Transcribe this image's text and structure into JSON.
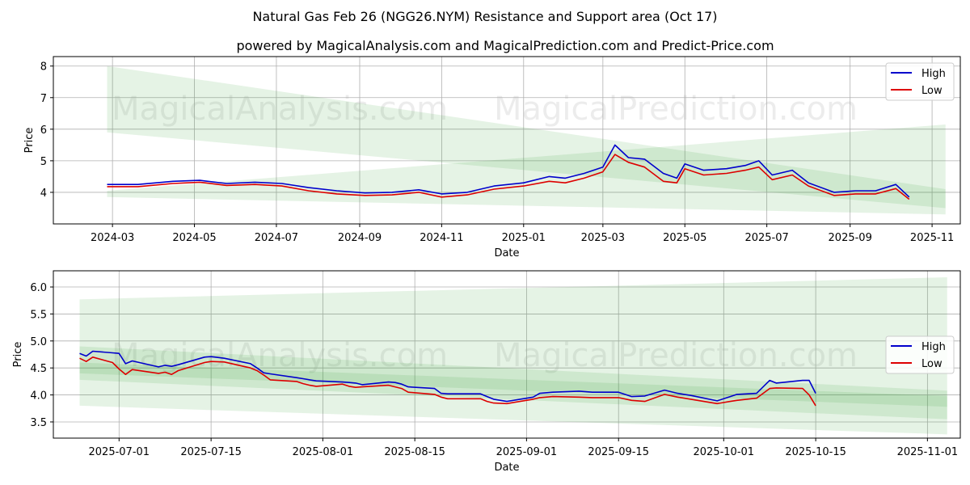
{
  "title": "Natural Gas Feb 26 (NGG26.NYM) Resistance and Support area (Oct 17)",
  "subtitle": "powered by MagicalAnalysis.com and MagicalPrediction.com and Predict-Price.com",
  "watermarks": [
    "MagicalAnalysis.com",
    "MagicalPrediction.com"
  ],
  "colors": {
    "high": "#0000cc",
    "low": "#dd0000",
    "band": "#2ca02c",
    "grid": "#b0b0b0"
  },
  "chart_data": [
    {
      "type": "line",
      "xlabel": "Date",
      "ylabel": "Price",
      "xlim": [
        "2024-01-17",
        "2025-11-22"
      ],
      "ylim": [
        3.0,
        8.3
      ],
      "xticks": [
        "2024-03",
        "2024-05",
        "2024-07",
        "2024-09",
        "2024-11",
        "2025-01",
        "2025-03",
        "2025-05",
        "2025-07",
        "2025-09",
        "2025-11"
      ],
      "yticks": [
        4,
        5,
        6,
        7,
        8
      ],
      "legend": [
        "High",
        "Low"
      ],
      "legend_position": "top-right",
      "bands": [
        {
          "x": [
            "2024-02-26",
            "2025-11-11"
          ],
          "upper": [
            8.0,
            4.1
          ],
          "lower": [
            5.9,
            3.5
          ]
        },
        {
          "x": [
            "2024-02-26",
            "2025-11-11"
          ],
          "upper": [
            4.05,
            6.15
          ],
          "lower": [
            3.85,
            3.3
          ]
        }
      ],
      "series": [
        {
          "name": "High",
          "x": [
            "2024-02-26",
            "2024-03-20",
            "2024-04-15",
            "2024-05-05",
            "2024-05-25",
            "2024-06-15",
            "2024-07-05",
            "2024-07-25",
            "2024-08-15",
            "2024-09-05",
            "2024-09-25",
            "2024-10-15",
            "2024-11-01",
            "2024-11-20",
            "2024-12-10",
            "2025-01-01",
            "2025-01-20",
            "2025-02-01",
            "2025-02-15",
            "2025-03-01",
            "2025-03-10",
            "2025-03-20",
            "2025-04-01",
            "2025-04-15",
            "2025-04-25",
            "2025-05-01",
            "2025-05-15",
            "2025-06-01",
            "2025-06-15",
            "2025-06-25",
            "2025-07-05",
            "2025-07-20",
            "2025-08-01",
            "2025-08-20",
            "2025-09-05",
            "2025-09-20",
            "2025-10-05",
            "2025-10-15"
          ],
          "values": [
            4.25,
            4.25,
            4.35,
            4.38,
            4.28,
            4.32,
            4.28,
            4.15,
            4.05,
            3.98,
            4.0,
            4.08,
            3.95,
            4.0,
            4.2,
            4.3,
            4.5,
            4.45,
            4.6,
            4.8,
            5.5,
            5.1,
            5.05,
            4.6,
            4.45,
            4.9,
            4.7,
            4.75,
            4.85,
            5.0,
            4.55,
            4.7,
            4.3,
            4.0,
            4.05,
            4.05,
            4.25,
            3.85
          ]
        },
        {
          "name": "Low",
          "x": [
            "2024-02-26",
            "2024-03-20",
            "2024-04-15",
            "2024-05-05",
            "2024-05-25",
            "2024-06-15",
            "2024-07-05",
            "2024-07-25",
            "2024-08-15",
            "2024-09-05",
            "2024-09-25",
            "2024-10-15",
            "2024-11-01",
            "2024-11-20",
            "2024-12-10",
            "2025-01-01",
            "2025-01-20",
            "2025-02-01",
            "2025-02-15",
            "2025-03-01",
            "2025-03-10",
            "2025-03-20",
            "2025-04-01",
            "2025-04-15",
            "2025-04-25",
            "2025-05-01",
            "2025-05-15",
            "2025-06-01",
            "2025-06-15",
            "2025-06-25",
            "2025-07-05",
            "2025-07-20",
            "2025-08-01",
            "2025-08-20",
            "2025-09-05",
            "2025-09-20",
            "2025-10-05",
            "2025-10-15"
          ],
          "values": [
            4.18,
            4.18,
            4.28,
            4.32,
            4.22,
            4.25,
            4.2,
            4.05,
            3.95,
            3.9,
            3.92,
            4.0,
            3.85,
            3.92,
            4.1,
            4.2,
            4.35,
            4.3,
            4.45,
            4.65,
            5.2,
            4.95,
            4.8,
            4.35,
            4.3,
            4.75,
            4.55,
            4.6,
            4.7,
            4.8,
            4.4,
            4.55,
            4.2,
            3.9,
            3.95,
            3.95,
            4.12,
            3.78
          ]
        }
      ]
    },
    {
      "type": "line",
      "xlabel": "Date",
      "ylabel": "Price",
      "xlim": [
        "2025-06-21",
        "2025-11-06"
      ],
      "ylim": [
        3.2,
        6.3
      ],
      "xticks": [
        "2025-07-01",
        "2025-07-15",
        "2025-08-01",
        "2025-08-15",
        "2025-09-01",
        "2025-09-15",
        "2025-10-01",
        "2025-10-15",
        "2025-11-01"
      ],
      "yticks": [
        3.5,
        4.0,
        4.5,
        5.0,
        5.5,
        6.0
      ],
      "legend": [
        "High",
        "Low"
      ],
      "legend_position": "center-right",
      "bands": [
        {
          "x": [
            "2025-06-25",
            "2025-11-04"
          ],
          "upper": [
            5.77,
            6.18
          ],
          "lower": [
            3.8,
            3.27
          ]
        },
        {
          "x": [
            "2025-06-25",
            "2025-11-04"
          ],
          "upper": [
            4.9,
            4.08
          ],
          "lower": [
            4.28,
            3.55
          ]
        },
        {
          "x": [
            "2025-06-25",
            "2025-11-04"
          ],
          "upper": [
            4.6,
            3.98
          ],
          "lower": [
            4.4,
            3.78
          ]
        }
      ],
      "series": [
        {
          "name": "High",
          "x": [
            "2025-06-25",
            "2025-06-26",
            "2025-06-27",
            "2025-06-30",
            "2025-07-01",
            "2025-07-02",
            "2025-07-03",
            "2025-07-07",
            "2025-07-08",
            "2025-07-09",
            "2025-07-10",
            "2025-07-14",
            "2025-07-15",
            "2025-07-17",
            "2025-07-21",
            "2025-07-22",
            "2025-07-23",
            "2025-07-24",
            "2025-07-28",
            "2025-07-29",
            "2025-07-30",
            "2025-07-31",
            "2025-08-04",
            "2025-08-05",
            "2025-08-06",
            "2025-08-07",
            "2025-08-11",
            "2025-08-12",
            "2025-08-13",
            "2025-08-14",
            "2025-08-18",
            "2025-08-19",
            "2025-08-20",
            "2025-08-25",
            "2025-08-26",
            "2025-08-27",
            "2025-08-29",
            "2025-09-02",
            "2025-09-03",
            "2025-09-05",
            "2025-09-09",
            "2025-09-11",
            "2025-09-15",
            "2025-09-17",
            "2025-09-19",
            "2025-09-22",
            "2025-09-24",
            "2025-09-25",
            "2025-09-26",
            "2025-09-30",
            "2025-10-02",
            "2025-10-03",
            "2025-10-06",
            "2025-10-08",
            "2025-10-09",
            "2025-10-13",
            "2025-10-14",
            "2025-10-15"
          ],
          "values": [
            4.77,
            4.72,
            4.81,
            4.78,
            4.77,
            4.58,
            4.63,
            4.52,
            4.55,
            4.53,
            4.56,
            4.7,
            4.71,
            4.68,
            4.58,
            4.5,
            4.41,
            4.39,
            4.32,
            4.3,
            4.28,
            4.26,
            4.24,
            4.23,
            4.22,
            4.19,
            4.24,
            4.23,
            4.2,
            4.15,
            4.12,
            4.03,
            4.02,
            4.02,
            3.97,
            3.92,
            3.88,
            3.96,
            4.03,
            4.05,
            4.07,
            4.05,
            4.05,
            3.97,
            3.98,
            4.09,
            4.03,
            4.01,
            3.99,
            3.89,
            3.97,
            4.01,
            4.03,
            4.27,
            4.22,
            4.27,
            4.27,
            4.03
          ]
        },
        {
          "name": "Low",
          "x": [
            "2025-06-25",
            "2025-06-26",
            "2025-06-27",
            "2025-06-30",
            "2025-07-01",
            "2025-07-02",
            "2025-07-03",
            "2025-07-07",
            "2025-07-08",
            "2025-07-09",
            "2025-07-10",
            "2025-07-14",
            "2025-07-15",
            "2025-07-17",
            "2025-07-21",
            "2025-07-22",
            "2025-07-23",
            "2025-07-24",
            "2025-07-28",
            "2025-07-29",
            "2025-07-30",
            "2025-07-31",
            "2025-08-04",
            "2025-08-05",
            "2025-08-06",
            "2025-08-07",
            "2025-08-11",
            "2025-08-12",
            "2025-08-13",
            "2025-08-14",
            "2025-08-18",
            "2025-08-19",
            "2025-08-20",
            "2025-08-25",
            "2025-08-26",
            "2025-08-27",
            "2025-08-29",
            "2025-09-02",
            "2025-09-03",
            "2025-09-05",
            "2025-09-09",
            "2025-09-11",
            "2025-09-15",
            "2025-09-17",
            "2025-09-19",
            "2025-09-22",
            "2025-09-24",
            "2025-09-25",
            "2025-09-26",
            "2025-09-30",
            "2025-10-02",
            "2025-10-03",
            "2025-10-06",
            "2025-10-08",
            "2025-10-09",
            "2025-10-13",
            "2025-10-14",
            "2025-10-15"
          ],
          "values": [
            4.68,
            4.62,
            4.7,
            4.6,
            4.48,
            4.38,
            4.47,
            4.4,
            4.42,
            4.38,
            4.45,
            4.6,
            4.62,
            4.61,
            4.5,
            4.45,
            4.37,
            4.28,
            4.25,
            4.21,
            4.18,
            4.16,
            4.2,
            4.16,
            4.14,
            4.15,
            4.18,
            4.15,
            4.12,
            4.05,
            4.01,
            3.96,
            3.93,
            3.93,
            3.88,
            3.85,
            3.84,
            3.92,
            3.95,
            3.97,
            3.96,
            3.95,
            3.95,
            3.9,
            3.88,
            4.01,
            3.96,
            3.94,
            3.92,
            3.84,
            3.88,
            3.9,
            3.94,
            4.12,
            4.13,
            4.12,
            4.0,
            3.8
          ]
        }
      ]
    }
  ]
}
